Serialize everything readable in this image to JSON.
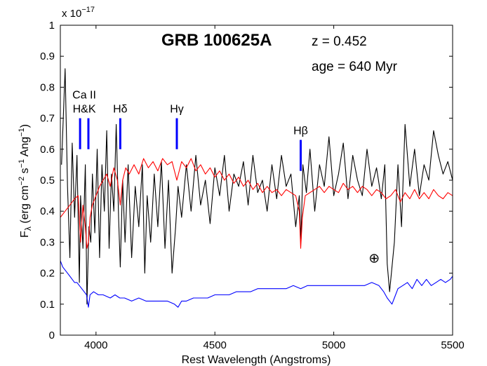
{
  "chart_data": {
    "type": "line",
    "title": "GRB 100625A",
    "annotations": {
      "redshift": "z = 0.452",
      "age": "age = 640 Myr",
      "telluric_symbol": "⊕"
    },
    "xlabel": "Rest Wavelength (Angstroms)",
    "ylabel": "F",
    "ylabel_sub": "λ",
    "ylabel_units": "(erg cm",
    "ylabel_exp1": "−2",
    "ylabel_mid": " s",
    "ylabel_exp2": "−1",
    "ylabel_end": " Ang",
    "ylabel_exp3": "−1",
    "ylabel_close": ")",
    "y_scale_label": "x 10",
    "y_scale_exponent": "−17",
    "xlim": [
      3850,
      5500
    ],
    "ylim": [
      0,
      1
    ],
    "x_ticks": [
      4000,
      4500,
      5000,
      5500
    ],
    "x_tick_labels": [
      "4000",
      "4500",
      "5000",
      "5500"
    ],
    "y_ticks": [
      0,
      0.1,
      0.2,
      0.3,
      0.4,
      0.5,
      0.6,
      0.7,
      0.8,
      0.9,
      1
    ],
    "y_tick_labels": [
      "0",
      "0.1",
      "0.2",
      "0.3",
      "0.4",
      "0.5",
      "0.6",
      "0.7",
      "0.8",
      "0.9",
      "1"
    ],
    "line_marks": [
      {
        "label_lines": [
          "Ca II",
          "H&K"
        ],
        "x": [
          3933,
          3968
        ],
        "y_range": [
          0.6,
          0.7
        ]
      },
      {
        "label_lines": [
          "Hδ"
        ],
        "x": [
          4102
        ],
        "y_range": [
          0.6,
          0.7
        ]
      },
      {
        "label_lines": [
          "Hγ"
        ],
        "x": [
          4340
        ],
        "y_range": [
          0.6,
          0.7
        ]
      },
      {
        "label_lines": [
          "Hβ"
        ],
        "x": [
          4861
        ],
        "y_range": [
          0.53,
          0.63
        ]
      }
    ],
    "telluric_x": 5170,
    "telluric_y": 0.25,
    "series": [
      {
        "color": "#000000",
        "x": [
          3855,
          3870,
          3880,
          3890,
          3900,
          3910,
          3920,
          3930,
          3935,
          3945,
          3955,
          3962,
          3970,
          3978,
          3985,
          3995,
          4005,
          4015,
          4025,
          4035,
          4045,
          4055,
          4065,
          4075,
          4085,
          4095,
          4102,
          4112,
          4122,
          4135,
          4150,
          4165,
          4180,
          4195,
          4205,
          4215,
          4230,
          4245,
          4260,
          4275,
          4290,
          4305,
          4320,
          4335,
          4345,
          4360,
          4380,
          4400,
          4420,
          4440,
          4460,
          4480,
          4500,
          4520,
          4540,
          4560,
          4580,
          4600,
          4620,
          4640,
          4660,
          4680,
          4700,
          4720,
          4740,
          4760,
          4780,
          4800,
          4820,
          4840,
          4855,
          4862,
          4870,
          4885,
          4900,
          4920,
          4940,
          4960,
          4980,
          5000,
          5020,
          5040,
          5060,
          5080,
          5100,
          5120,
          5140,
          5160,
          5180,
          5200,
          5215,
          5225,
          5235,
          5245,
          5255,
          5270,
          5285,
          5300,
          5320,
          5340,
          5360,
          5380,
          5400,
          5420,
          5440,
          5460,
          5480,
          5500
        ],
        "y": [
          0.55,
          0.86,
          0.48,
          0.25,
          0.62,
          0.38,
          0.58,
          0.17,
          0.45,
          0.28,
          0.55,
          0.1,
          0.35,
          0.3,
          0.52,
          0.33,
          0.6,
          0.25,
          0.55,
          0.4,
          0.66,
          0.28,
          0.52,
          0.4,
          0.68,
          0.38,
          0.22,
          0.5,
          0.3,
          0.55,
          0.25,
          0.48,
          0.35,
          0.55,
          0.2,
          0.45,
          0.3,
          0.52,
          0.35,
          0.56,
          0.28,
          0.5,
          0.2,
          0.35,
          0.48,
          0.38,
          0.55,
          0.4,
          0.58,
          0.42,
          0.5,
          0.36,
          0.54,
          0.45,
          0.58,
          0.4,
          0.52,
          0.48,
          0.56,
          0.42,
          0.58,
          0.46,
          0.5,
          0.4,
          0.55,
          0.44,
          0.58,
          0.48,
          0.52,
          0.35,
          0.45,
          0.3,
          0.55,
          0.46,
          0.6,
          0.4,
          0.55,
          0.48,
          0.64,
          0.45,
          0.52,
          0.62,
          0.44,
          0.58,
          0.5,
          0.45,
          0.6,
          0.48,
          0.54,
          0.44,
          0.55,
          0.23,
          0.14,
          0.22,
          0.3,
          0.55,
          0.35,
          0.68,
          0.48,
          0.6,
          0.45,
          0.55,
          0.5,
          0.66,
          0.58,
          0.52,
          0.56,
          0.5
        ]
      },
      {
        "color": "#ff0000",
        "x": [
          3850,
          3870,
          3890,
          3910,
          3925,
          3935,
          3945,
          3955,
          3962,
          3968,
          3975,
          3985,
          4000,
          4015,
          4030,
          4045,
          4060,
          4075,
          4090,
          4102,
          4112,
          4125,
          4140,
          4160,
          4180,
          4200,
          4220,
          4240,
          4260,
          4280,
          4300,
          4320,
          4340,
          4360,
          4380,
          4400,
          4420,
          4440,
          4460,
          4480,
          4500,
          4520,
          4540,
          4560,
          4580,
          4600,
          4620,
          4640,
          4660,
          4680,
          4700,
          4720,
          4740,
          4760,
          4780,
          4800,
          4820,
          4840,
          4855,
          4861,
          4868,
          4880,
          4900,
          4920,
          4940,
          4960,
          4980,
          5000,
          5020,
          5040,
          5060,
          5080,
          5100,
          5120,
          5140,
          5160,
          5180,
          5200,
          5220,
          5240,
          5260,
          5280,
          5300,
          5320,
          5340,
          5360,
          5380,
          5400,
          5420,
          5440,
          5460,
          5480,
          5500
        ],
        "y": [
          0.38,
          0.4,
          0.42,
          0.44,
          0.45,
          0.3,
          0.42,
          0.35,
          0.28,
          0.3,
          0.38,
          0.42,
          0.45,
          0.48,
          0.5,
          0.52,
          0.48,
          0.54,
          0.5,
          0.42,
          0.5,
          0.54,
          0.52,
          0.55,
          0.52,
          0.57,
          0.54,
          0.56,
          0.53,
          0.57,
          0.55,
          0.56,
          0.5,
          0.56,
          0.54,
          0.57,
          0.53,
          0.55,
          0.52,
          0.54,
          0.51,
          0.53,
          0.5,
          0.52,
          0.49,
          0.51,
          0.48,
          0.5,
          0.47,
          0.49,
          0.46,
          0.48,
          0.46,
          0.47,
          0.45,
          0.47,
          0.46,
          0.45,
          0.4,
          0.28,
          0.38,
          0.45,
          0.46,
          0.47,
          0.48,
          0.46,
          0.48,
          0.47,
          0.46,
          0.49,
          0.47,
          0.48,
          0.46,
          0.48,
          0.47,
          0.45,
          0.47,
          0.46,
          0.44,
          0.45,
          0.47,
          0.43,
          0.46,
          0.44,
          0.47,
          0.44,
          0.46,
          0.44,
          0.47,
          0.45,
          0.44,
          0.46,
          0.45
        ]
      },
      {
        "color": "#0000ff",
        "x": [
          3850,
          3860,
          3870,
          3880,
          3890,
          3900,
          3910,
          3920,
          3930,
          3940,
          3950,
          3960,
          3968,
          3975,
          3990,
          4010,
          4030,
          4060,
          4080,
          4100,
          4120,
          4150,
          4180,
          4210,
          4240,
          4270,
          4300,
          4330,
          4345,
          4360,
          4380,
          4410,
          4440,
          4470,
          4500,
          4530,
          4560,
          4590,
          4620,
          4650,
          4680,
          4710,
          4740,
          4770,
          4800,
          4830,
          4861,
          4890,
          4920,
          4950,
          4980,
          5010,
          5040,
          5070,
          5100,
          5130,
          5160,
          5190,
          5210,
          5225,
          5235,
          5245,
          5255,
          5270,
          5290,
          5310,
          5330,
          5350,
          5370,
          5390,
          5410,
          5430,
          5450,
          5470,
          5490,
          5500
        ],
        "y": [
          0.24,
          0.22,
          0.21,
          0.2,
          0.19,
          0.18,
          0.17,
          0.17,
          0.16,
          0.15,
          0.14,
          0.13,
          0.09,
          0.13,
          0.14,
          0.13,
          0.13,
          0.12,
          0.13,
          0.12,
          0.12,
          0.11,
          0.12,
          0.11,
          0.11,
          0.11,
          0.11,
          0.1,
          0.09,
          0.11,
          0.11,
          0.12,
          0.12,
          0.12,
          0.13,
          0.13,
          0.13,
          0.14,
          0.14,
          0.14,
          0.15,
          0.15,
          0.15,
          0.15,
          0.15,
          0.16,
          0.15,
          0.16,
          0.16,
          0.16,
          0.16,
          0.16,
          0.16,
          0.16,
          0.16,
          0.16,
          0.17,
          0.16,
          0.14,
          0.12,
          0.11,
          0.1,
          0.12,
          0.15,
          0.16,
          0.17,
          0.15,
          0.18,
          0.16,
          0.18,
          0.16,
          0.17,
          0.18,
          0.17,
          0.18,
          0.19
        ]
      }
    ]
  }
}
